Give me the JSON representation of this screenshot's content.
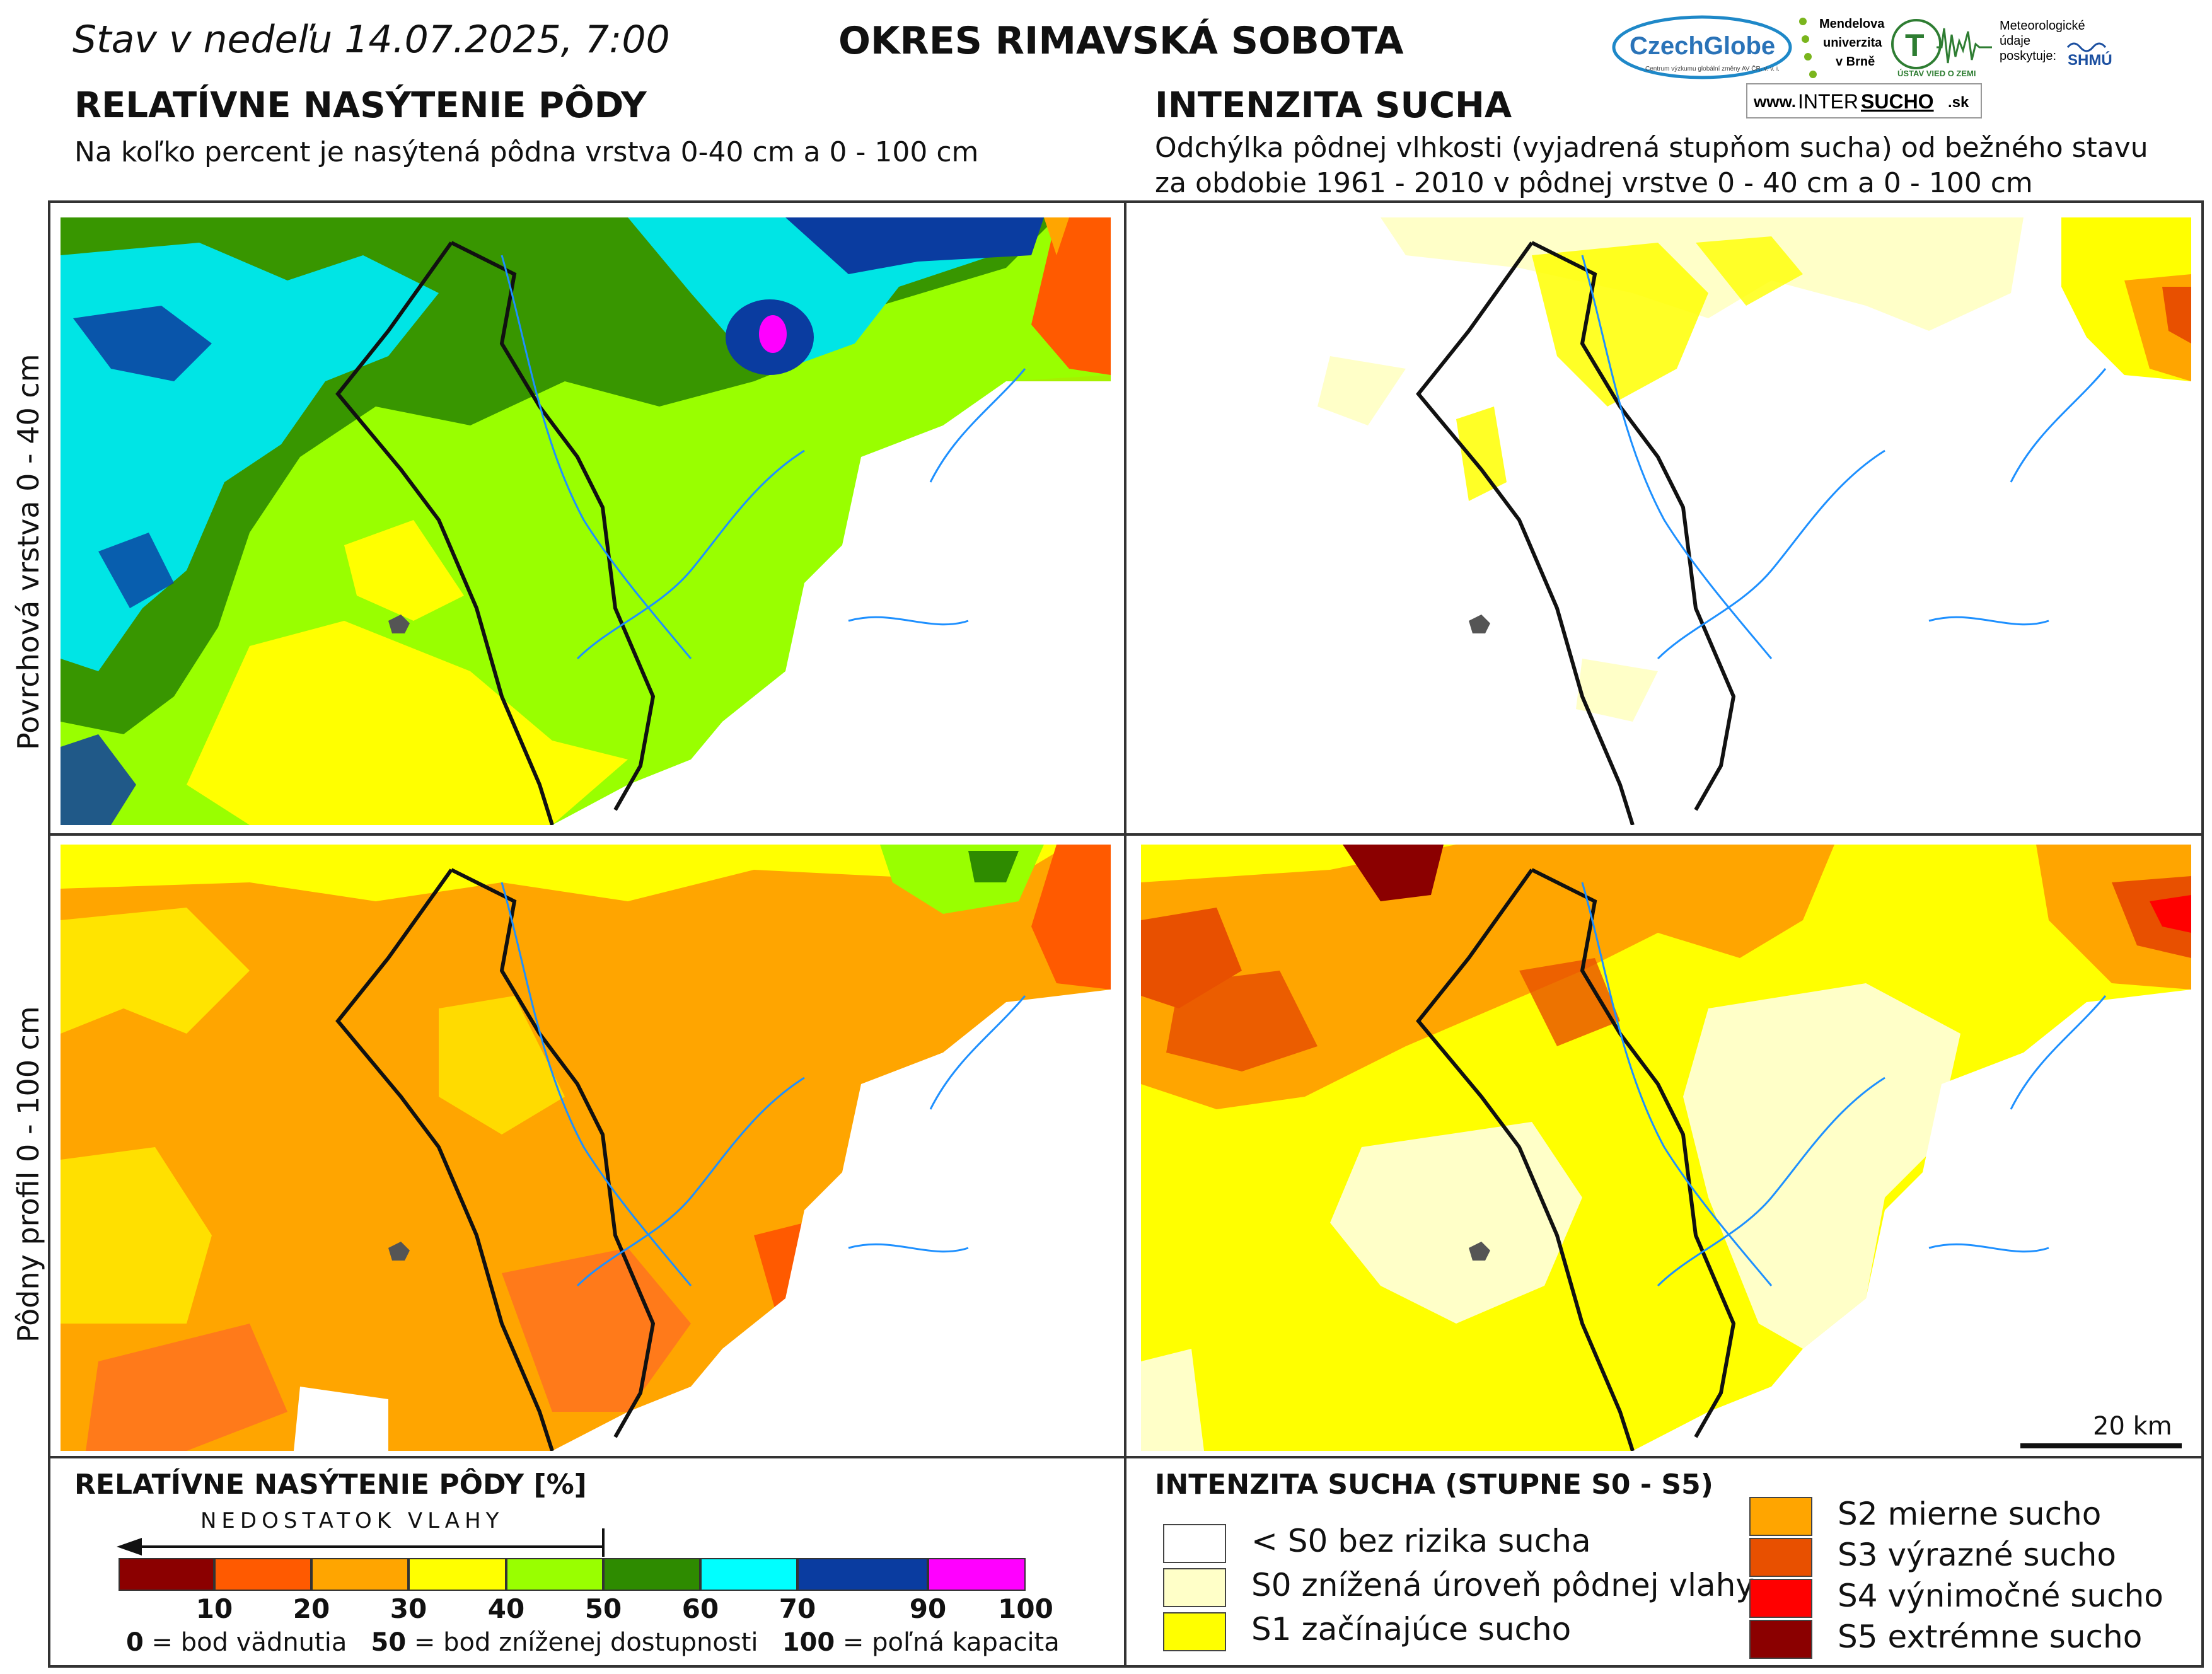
{
  "header": {
    "status": "Stav v nedeľu 14.07.2025, 7:00",
    "district": "OKRES  RIMAVSKÁ SOBOTA"
  },
  "left_column": {
    "title": "RELATÍVNE NASÝTENIE PÔDY",
    "subtitle": "Na koľko percent je nasýtená pôdna vrstva 0-40 cm a 0 - 100 cm"
  },
  "right_column": {
    "title": "INTENZITA SUCHA",
    "subtitle_line1": "Odchýlka pôdnej vlhkosti (vyjadrená stupňom sucha) od bežného stavu",
    "subtitle_line2": "za obdobie 1961 - 2010 v pôdnej vrstve 0 - 40 cm a 0 - 100 cm"
  },
  "logos": {
    "czechglobe": "CzechGlobe",
    "czechglobe_sub": "Centrum výzkumu globální změny AV ČR, v. v. i.",
    "mendel_1": "Mendelova",
    "mendel_2": "univerzita",
    "mendel_3": "v Brně",
    "uvz": "ÚSTAV VIED O ZEMI",
    "meteo_1": "Meteorologické",
    "meteo_2": "údaje",
    "meteo_3": "poskytuje:",
    "shmu": "SHMÚ",
    "intersucho_prefix": "www.",
    "intersucho_a": "INTER",
    "intersucho_b": "SUCHO",
    "intersucho_suffix": ".sk"
  },
  "row_labels": {
    "top": "Povrchová vrstva 0 - 40 cm",
    "bottom": "Pôdny profil 0 - 100 cm"
  },
  "scale_bar": "20 km",
  "saturation_legend": {
    "title": "RELATÍVNE NASÝTENIE PÔDY [%]",
    "arrow_label": "NEDOSTATOK VLAHY",
    "colors": [
      "#8b0000",
      "#ff5a00",
      "#ffa500",
      "#ffff00",
      "#99ff00",
      "#2e8b00",
      "#00ffff",
      "#0a3ca0",
      "#ff00ff"
    ],
    "ticks": [
      "10",
      "20",
      "30",
      "40",
      "50",
      "60",
      "70",
      "90",
      "100"
    ],
    "note_a_bold": "0",
    "note_a": " = bod vädnutia",
    "note_b_bold": "50",
    "note_b": " = bod zníženej dostupnosti",
    "note_c_bold": "100",
    "note_c": " = poľná kapacita"
  },
  "drought_legend": {
    "title": "INTENZITA SUCHA (STUPNE S0 - S5)",
    "items": [
      {
        "label": "< S0 bez rizika sucha",
        "color": "#ffffff"
      },
      {
        "label": "S0 znížená úroveň pôdnej vlahy",
        "color": "#ffffc8"
      },
      {
        "label": "S1 začínajúce sucho",
        "color": "#ffff00"
      },
      {
        "label": "S2 mierne sucho",
        "color": "#ffa500"
      },
      {
        "label": "S3 výrazné sucho",
        "color": "#e85000"
      },
      {
        "label": "S4 výnimočné sucho",
        "color": "#ff0000"
      },
      {
        "label": "S5 extrémne sucho",
        "color": "#8b0000"
      }
    ]
  }
}
